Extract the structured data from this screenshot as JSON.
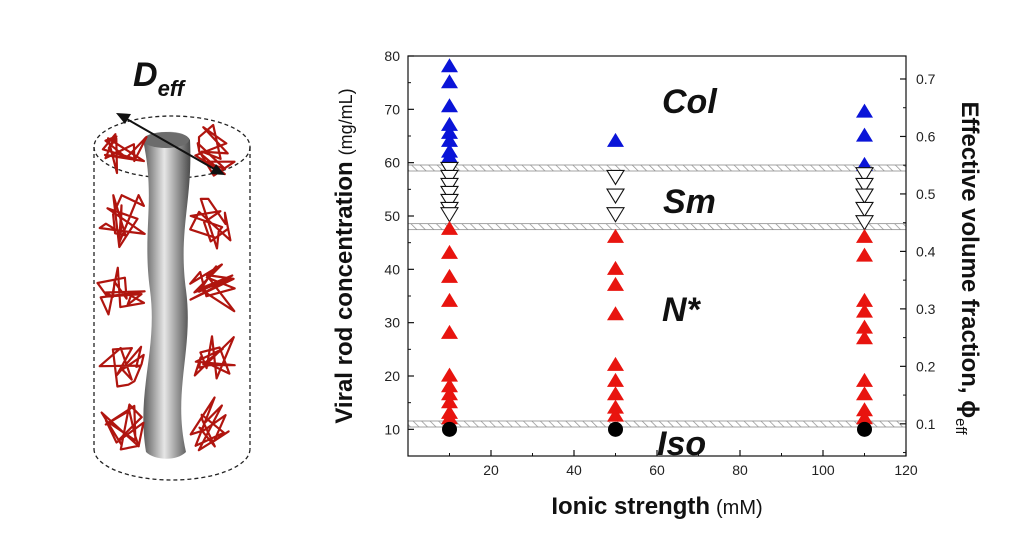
{
  "illustration": {
    "label_main": "D",
    "label_sub": "eff",
    "colors": {
      "rod": "#8a8a8a",
      "polymer": "#b0150f",
      "outline": "#222222"
    }
  },
  "chart_data": {
    "type": "scatter",
    "xlabel": "Ionic strength",
    "xlabel_unit": "(mM)",
    "ylabel": "Viral rod concentration",
    "ylabel_unit": "(mg/mL)",
    "y2label": "Effective volume fraction, ϕ",
    "y2label_sub": "eff",
    "xlim": [
      0,
      120
    ],
    "ylim": [
      5,
      80
    ],
    "y2lim": [
      0.044,
      0.74
    ],
    "xticks": [
      "20",
      "40",
      "60",
      "80",
      "100",
      "120"
    ],
    "yticks": [
      "10",
      "20",
      "30",
      "40",
      "50",
      "60",
      "70",
      "80"
    ],
    "y2ticks": [
      "0.1",
      "0.2",
      "0.3",
      "0.4",
      "0.5",
      "0.6",
      "0.7"
    ],
    "phases": [
      "Col",
      "Sm",
      "N*",
      "Iso"
    ],
    "boundaries": [
      59,
      48,
      11
    ],
    "colors": {
      "col": "#0a14d8",
      "nematic": "#e8140f",
      "smectic": "#ffffff",
      "iso": "#000000",
      "band": "#8c8c8c"
    },
    "series": [
      {
        "marker": "triangle-up-blue",
        "points": [
          {
            "x": 10,
            "y": 78
          },
          {
            "x": 10,
            "y": 75
          },
          {
            "x": 10,
            "y": 70.5
          },
          {
            "x": 10,
            "y": 67
          },
          {
            "x": 10,
            "y": 65.5
          },
          {
            "x": 10,
            "y": 64
          },
          {
            "x": 10,
            "y": 62
          },
          {
            "x": 10,
            "y": 61
          },
          {
            "x": 50,
            "y": 64
          },
          {
            "x": 110,
            "y": 69.5
          },
          {
            "x": 110,
            "y": 65
          },
          {
            "x": 110,
            "y": 59.5
          }
        ]
      },
      {
        "marker": "triangle-down-open",
        "points": [
          {
            "x": 10,
            "y": 59
          },
          {
            "x": 10,
            "y": 57.5
          },
          {
            "x": 10,
            "y": 56
          },
          {
            "x": 10,
            "y": 54.5
          },
          {
            "x": 10,
            "y": 53
          },
          {
            "x": 10,
            "y": 51.5
          },
          {
            "x": 10,
            "y": 50.5
          },
          {
            "x": 50,
            "y": 57.5
          },
          {
            "x": 50,
            "y": 54
          },
          {
            "x": 50,
            "y": 50.5
          },
          {
            "x": 110,
            "y": 58
          },
          {
            "x": 110,
            "y": 56
          },
          {
            "x": 110,
            "y": 54
          },
          {
            "x": 110,
            "y": 51.5
          },
          {
            "x": 110,
            "y": 49
          }
        ]
      },
      {
        "marker": "triangle-up-red",
        "points": [
          {
            "x": 10,
            "y": 47.5
          },
          {
            "x": 10,
            "y": 43
          },
          {
            "x": 10,
            "y": 38.5
          },
          {
            "x": 10,
            "y": 34
          },
          {
            "x": 10,
            "y": 28
          },
          {
            "x": 10,
            "y": 20
          },
          {
            "x": 10,
            "y": 18
          },
          {
            "x": 10,
            "y": 16.5
          },
          {
            "x": 10,
            "y": 15
          },
          {
            "x": 10,
            "y": 13
          },
          {
            "x": 10,
            "y": 12
          },
          {
            "x": 50,
            "y": 46
          },
          {
            "x": 50,
            "y": 40
          },
          {
            "x": 50,
            "y": 37
          },
          {
            "x": 50,
            "y": 31.5
          },
          {
            "x": 50,
            "y": 22
          },
          {
            "x": 50,
            "y": 19
          },
          {
            "x": 50,
            "y": 16.5
          },
          {
            "x": 50,
            "y": 14
          },
          {
            "x": 50,
            "y": 12.5
          },
          {
            "x": 110,
            "y": 46
          },
          {
            "x": 110,
            "y": 42.5
          },
          {
            "x": 110,
            "y": 34
          },
          {
            "x": 110,
            "y": 32
          },
          {
            "x": 110,
            "y": 29
          },
          {
            "x": 110,
            "y": 27
          },
          {
            "x": 110,
            "y": 19
          },
          {
            "x": 110,
            "y": 16.5
          },
          {
            "x": 110,
            "y": 13.5
          },
          {
            "x": 110,
            "y": 12
          }
        ]
      },
      {
        "marker": "circle-black",
        "points": [
          {
            "x": 10,
            "y": 10
          },
          {
            "x": 50,
            "y": 10
          },
          {
            "x": 110,
            "y": 10
          }
        ]
      }
    ]
  }
}
